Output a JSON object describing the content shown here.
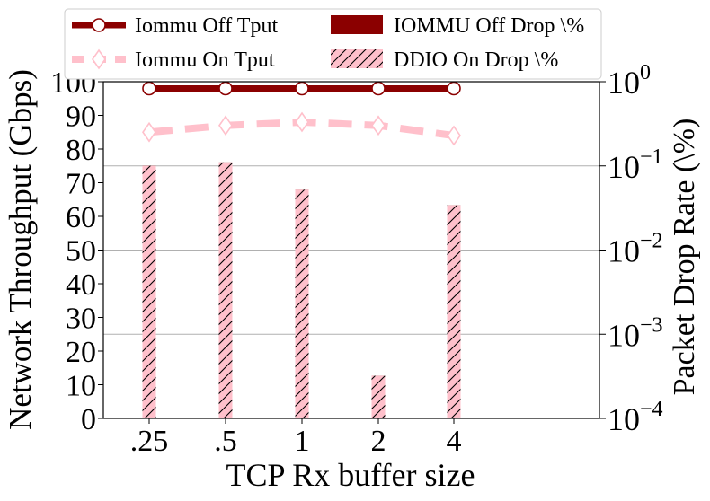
{
  "chart_data": {
    "type": "bar+line",
    "xlabel": "TCP Rx buffer size",
    "ylabel_left": "Network Throughput (Gbps)",
    "ylabel_right": "Packet Drop Rate (\\%)",
    "categories": [
      ".25",
      ".5",
      "1",
      "2",
      "4"
    ],
    "ylim_left": [
      0,
      100
    ],
    "yticks_left": [
      "0",
      "10",
      "20",
      "30",
      "40",
      "50",
      "60",
      "70",
      "80",
      "90",
      "100"
    ],
    "ylim_right": [
      0.0001,
      1
    ],
    "right_scale": "log",
    "yticks_right": [
      {
        "base": "10",
        "exp": "−4"
      },
      {
        "base": "10",
        "exp": "−3"
      },
      {
        "base": "10",
        "exp": "−2"
      },
      {
        "base": "10",
        "exp": "−1"
      },
      {
        "base": "10",
        "exp": "0"
      }
    ],
    "grid": "horizontal at right-axis decades",
    "legend_placement": "top",
    "legend": [
      {
        "label": "Iommu Off Tput",
        "kind": "line",
        "series": "iommu_off_tput"
      },
      {
        "label": "IOMMU Off Drop \\%",
        "kind": "bar",
        "series": "iommu_off_drop"
      },
      {
        "label": "Iommu On Tput",
        "kind": "line",
        "series": "iommu_on_tput"
      },
      {
        "label": "DDIO On Drop \\%",
        "kind": "bar",
        "series": "ddio_on_drop"
      }
    ],
    "lines": [
      {
        "id": "iommu_off_tput",
        "name": "Iommu Off Tput",
        "axis": "left",
        "color": "#8b0000",
        "marker": "circle",
        "dashed": false,
        "values": [
          98,
          98,
          98,
          98,
          98
        ]
      },
      {
        "id": "iommu_on_tput",
        "name": "Iommu On Tput",
        "axis": "left",
        "color": "#ffc0cb",
        "marker": "diamond",
        "dashed": true,
        "values": [
          85,
          87,
          88,
          87,
          84
        ]
      }
    ],
    "bars": [
      {
        "id": "iommu_off_drop",
        "name": "IOMMU Off Drop \\%",
        "axis": "right",
        "color": "#8b0000",
        "hatch": false,
        "values": [
          0.1,
          0.11,
          0.052,
          0.00032,
          0.034
        ]
      },
      {
        "id": "ddio_on_drop",
        "name": "DDIO On Drop \\%",
        "axis": "right",
        "color": "#ffc0cb",
        "hatch": true,
        "values": [
          0.1,
          0.11,
          0.052,
          0.00032,
          0.034
        ]
      }
    ]
  }
}
